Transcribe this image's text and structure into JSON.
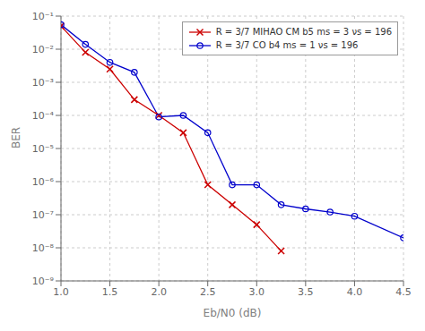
{
  "chart_data": {
    "type": "line",
    "xlabel": "Eb/N0 (dB)",
    "ylabel": "BER",
    "log": "y",
    "grid": true,
    "legend": "upper right",
    "xlim": [
      1.0,
      4.5
    ],
    "xticks": [
      {
        "value": 1.0,
        "label": "1.0"
      },
      1.5,
      {
        "value": 2.0,
        "label": "2.0"
      },
      2.5,
      {
        "value": 3.0,
        "label": "3.0"
      },
      3.5,
      {
        "value": 4.0,
        "label": "4.0"
      },
      4.5
    ],
    "ylim": [
      1e-09,
      0.1
    ],
    "yticks": [
      {
        "value": 1e-09,
        "label": "10⁻⁹"
      },
      {
        "value": 1e-08,
        "label": "10⁻⁸"
      },
      {
        "value": 1e-07,
        "label": "10⁻⁷"
      },
      {
        "value": 1e-06,
        "label": "10⁻⁶"
      },
      {
        "value": 1e-05,
        "label": "10⁻⁵"
      },
      {
        "value": 0.0001,
        "label": "10⁻⁴"
      },
      {
        "value": 0.001,
        "label": "10⁻³"
      },
      {
        "value": 0.01,
        "label": "10⁻²"
      },
      {
        "value": 0.1,
        "label": "10⁻¹"
      }
    ],
    "series": [
      {
        "name": "R = 3/7 MIHAO CM b5 ms = 3 νs = 196",
        "color": "#cc0000",
        "marker": "x",
        "x": [
          1.0,
          1.25,
          1.5,
          1.75,
          2.0,
          2.25,
          2.5,
          2.75,
          3.0,
          3.25
        ],
        "values": [
          0.05,
          0.008,
          0.0025,
          0.0003,
          0.0001,
          3e-05,
          8e-07,
          2e-07,
          5e-08,
          8e-09
        ]
      },
      {
        "name": "R = 3/7 CO b4 ms = 1 νs = 196",
        "color": "#0000cc",
        "marker": "o",
        "x": [
          1.0,
          1.25,
          1.5,
          1.75,
          2.0,
          2.25,
          2.5,
          2.75,
          3.0,
          3.25,
          3.5,
          3.75,
          4.0,
          4.5
        ],
        "values": [
          0.055,
          0.014,
          0.004,
          0.002,
          9e-05,
          0.0001,
          3e-05,
          8e-07,
          8e-07,
          2e-07,
          1.5e-07,
          1.2e-07,
          9e-08,
          2e-08
        ]
      }
    ]
  }
}
